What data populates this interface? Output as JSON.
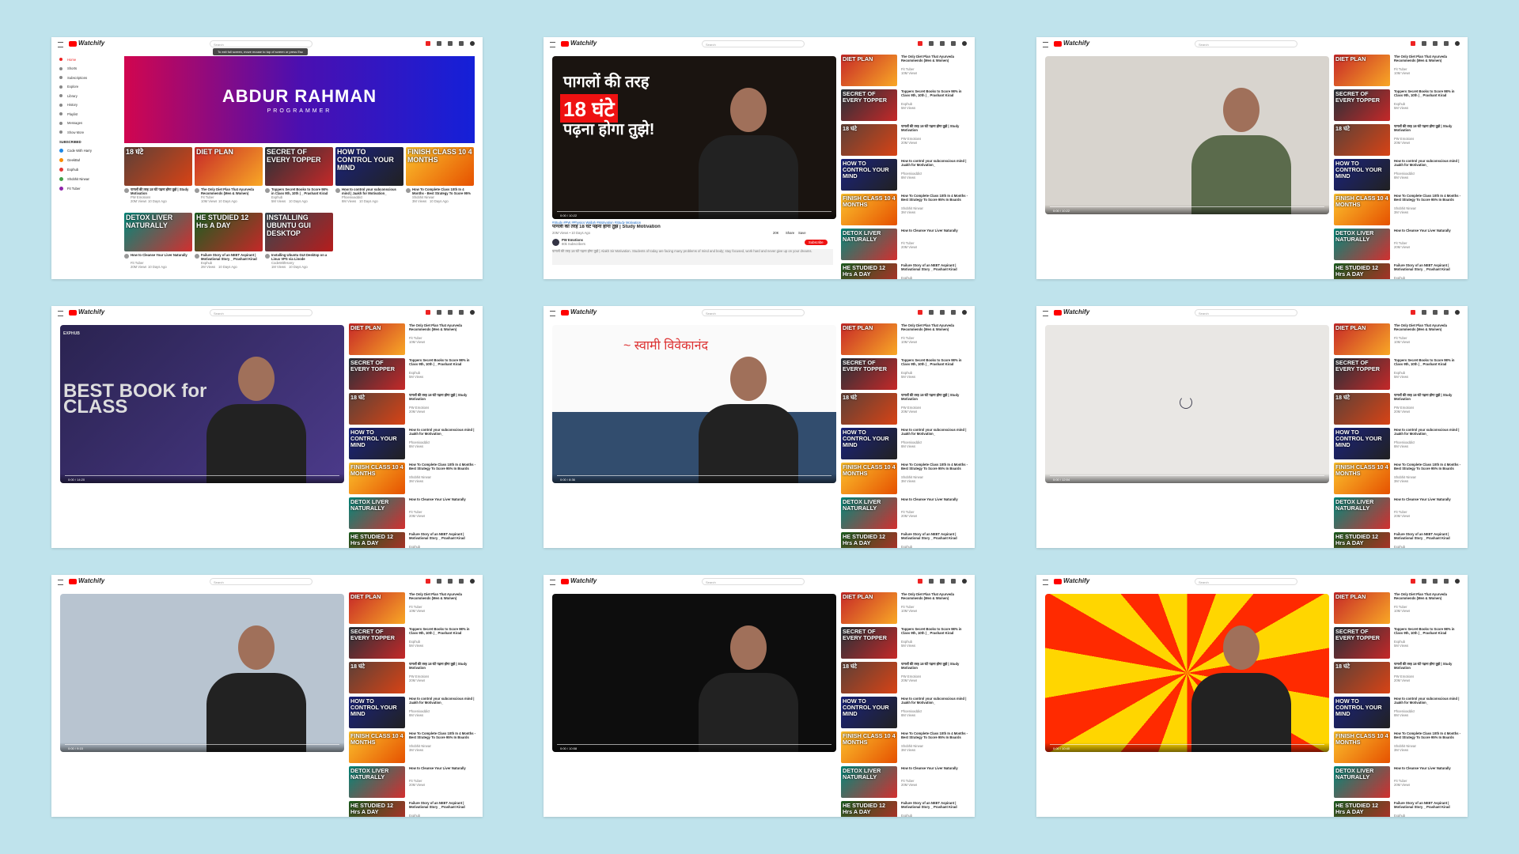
{
  "app_name": "Watchify",
  "search_placeholder": "Search",
  "home": {
    "sidebar": [
      "Home",
      "Shorts",
      "Subscriptions",
      "Explore",
      "Library",
      "History",
      "Playlist",
      "Messages",
      "Show More"
    ],
    "subscribed_heading": "SUBSCRIBED",
    "channels": [
      "Code With Harry",
      "GeekBuf",
      "Exphub",
      "Shobhit Nirwan",
      "Fit Tuber"
    ],
    "banner_title": "ABDUR RAHMAN",
    "banner_subtitle": "PROGRAMMER",
    "tooltip": "To exit full screen, move mouse to top of screen or press Esc",
    "age": "10 Days Ago"
  },
  "recommended": [
    {
      "title": "The Only Diet Plan That Ayurveda Recommends (Men & Women)",
      "channel": "Fit Tuber",
      "meta": "10M Views",
      "thumb": "DIET PLAN"
    },
    {
      "title": "Toppers Secret Books to Score 98% in Class 9th, 10th | _ Prashant Kirad",
      "channel": "Exphub",
      "meta": "5M Views",
      "thumb": "SECRET OF EVERY TOPPER"
    },
    {
      "title": "पागलों की तरह 18 घंटे पढ़ना होगा तुझे | Study Motivation",
      "channel": "PW Emotions",
      "meta": "20M Views",
      "thumb": "18 घंटे"
    },
    {
      "title": "How to control your subconscious mind | Jaakh for Motivation_",
      "channel": "Phoenixaddict",
      "meta": "8M Views",
      "thumb": "HOW TO CONTROL YOUR MIND"
    },
    {
      "title": "How To Complete Class 10th In 4 Months - Best Strategy To Score 95% In Boards",
      "channel": "Shobhit Nirwan",
      "meta": "3M Views",
      "thumb": "FINISH CLASS 10 4 MONTHS"
    },
    {
      "title": "How to Cleanse Your Liver Naturally",
      "channel": "Fit Tuber",
      "meta": "20M Views",
      "thumb": "DETOX LIVER NATURALLY"
    },
    {
      "title": "Failure Story of an NEET Aspirant | Motivational Story _ Prashant Kirad",
      "channel": "Exphub",
      "meta": "2M Views",
      "thumb": "HE STUDIED 12 Hrs A DAY"
    },
    {
      "title": "Installing Ubuntu GUI Desktop on a Linux VPS via Linode",
      "channel": "CodeWithHarry",
      "meta": "1M Views",
      "thumb": "INSTALLING UBUNTU GUI DESKTOP"
    }
  ],
  "watch_pages": [
    {
      "overlay": [
        "पागलों की तरह",
        "18 घंटे",
        "पढ़ना होगा तुझे!"
      ],
      "hashtags": "#Study #PW #Physics Wallah #Motivation #Study Motivation",
      "title": "पागलों की तरह 18 घंटे पढ़ना होगा तुझे | Study Motivation",
      "views": "20M Views • 10 Days Ago",
      "channel": "PW Emotions",
      "subscribers": "80k Subscribers",
      "subscribe": "Subscribe",
      "actions": [
        "20K",
        "Share",
        "Save"
      ],
      "description": "पागलों की तरह 18 घंटे पढ़ना होगा तुझे | Alakh Sir Motivation. Students of today are facing many problems of mind and body; stay focused, work hard and never give up on your dreams.",
      "time": "0:00 / 10:22"
    },
    {
      "overlay": [],
      "time": "0:00 / 10:22"
    },
    {
      "overlay": [
        "EXPHUB",
        "BEST BOOK for",
        "CLASS"
      ],
      "time": "0:00 / 14:20"
    },
    {
      "overlay": [
        "~ स्वामी विवेकानंद"
      ],
      "time": "0:00 / 8:36"
    },
    {
      "overlay": [],
      "time": "0:00 / 12:04"
    },
    {
      "overlay": [],
      "time": "0:00 / 9:15"
    },
    {
      "overlay": [],
      "time": "0:00 / 10:58"
    },
    {
      "overlay": [],
      "time": "0:00 / 10:40"
    }
  ]
}
